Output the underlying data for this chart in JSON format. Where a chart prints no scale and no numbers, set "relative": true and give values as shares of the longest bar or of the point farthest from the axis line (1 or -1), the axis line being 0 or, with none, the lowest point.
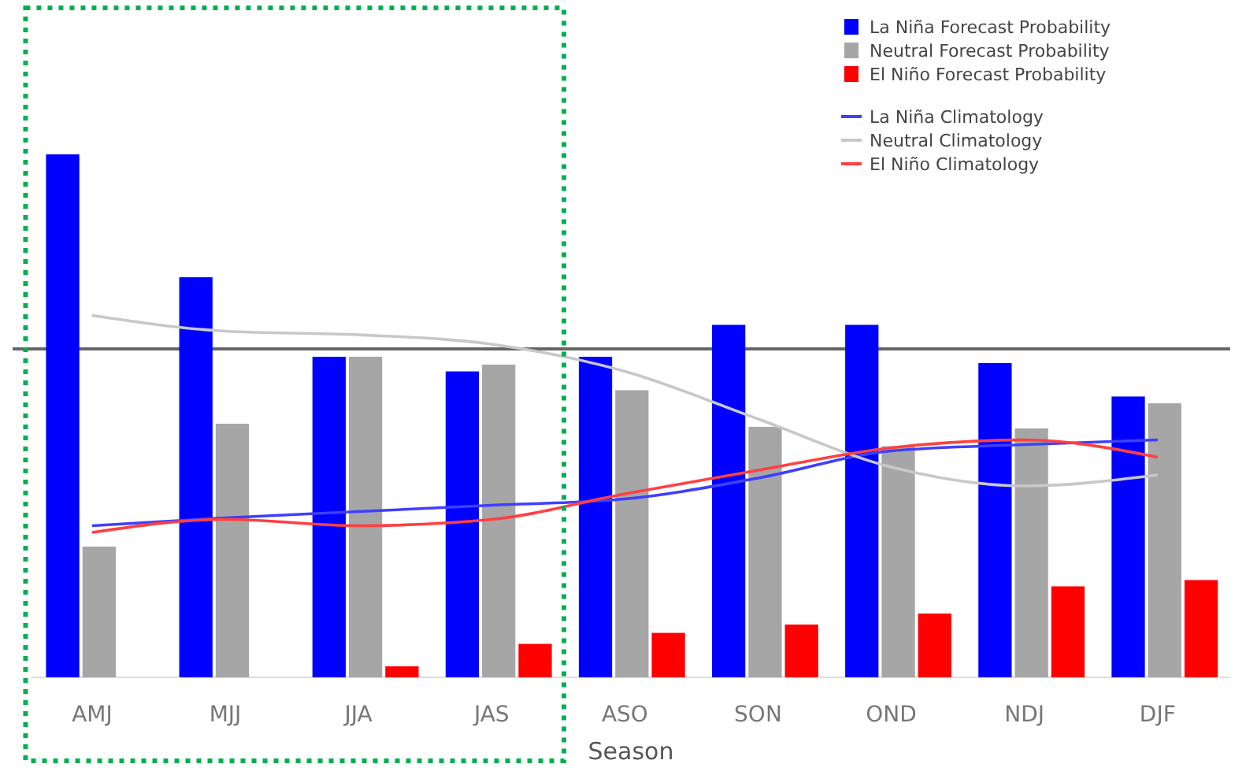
{
  "chart_data": {
    "type": "bar",
    "relative": true,
    "xlabel": "Season",
    "legend": "top right",
    "categories": [
      "AMJ",
      "MJJ",
      "JJA",
      "JAS",
      "ASO",
      "SON",
      "OND",
      "NDJ",
      "DJF"
    ],
    "series": [
      {
        "name": "La Niña Forecast Probability",
        "color": "#0000ff",
        "values": [
          1,
          0.765,
          0.613,
          0.585,
          0.613,
          0.674,
          0.674,
          0.601,
          0.537
        ]
      },
      {
        "name": "Neutral Forecast Probability",
        "color": "#a6a6a6",
        "values": [
          0.25,
          0.485,
          0.613,
          0.598,
          0.549,
          0.479,
          0.442,
          0.476,
          0.524
        ]
      },
      {
        "name": "El Niño Forecast Probability",
        "color": "#ff0000",
        "values": [
          0,
          0,
          0.021,
          0.064,
          0.085,
          0.101,
          0.122,
          0.174,
          0.186
        ]
      },
      {
        "name": "La Niña Climatology",
        "type": "line",
        "color": "#3f3fff",
        "values": [
          0.29,
          0.305,
          0.317,
          0.329,
          0.341,
          0.381,
          0.433,
          0.445,
          0.454
        ]
      },
      {
        "name": "Neutral Climatology",
        "type": "line",
        "color": "#c8c8c8",
        "values": [
          0.692,
          0.662,
          0.655,
          0.637,
          0.585,
          0.494,
          0.402,
          0.366,
          0.387
        ]
      },
      {
        "name": "El Niño Climatology",
        "type": "line",
        "color": "#ff4040",
        "values": [
          0.277,
          0.302,
          0.29,
          0.302,
          0.351,
          0.396,
          0.439,
          0.454,
          0.421
        ]
      }
    ],
    "ref_lines": [
      {
        "axis": "y",
        "value": 0.628,
        "color": "#666666"
      }
    ]
  }
}
